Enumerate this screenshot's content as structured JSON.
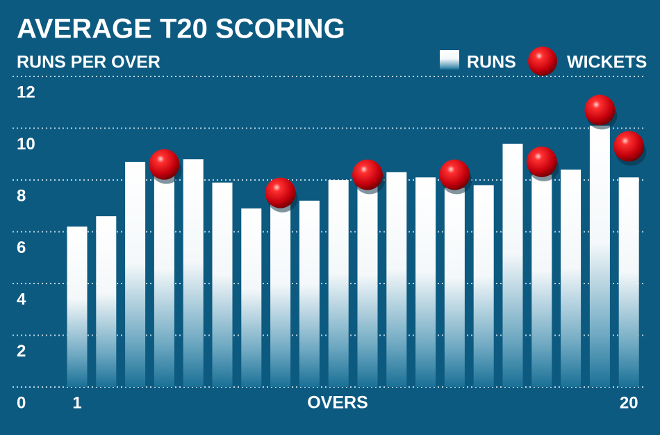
{
  "chart_data": {
    "type": "bar",
    "title": "AVERAGE T20 SCORING",
    "ylabel": "RUNS PER OVER",
    "xlabel": "OVERS",
    "categories": [
      1,
      null,
      null,
      null,
      null,
      null,
      null,
      null,
      null,
      null,
      null,
      null,
      null,
      null,
      null,
      null,
      null,
      null,
      null,
      20
    ],
    "series": [
      {
        "name": "RUNS",
        "color": "#ffffff",
        "values": [
          6.2,
          6.6,
          8.7,
          8.3,
          8.8,
          7.9,
          6.9,
          7.2,
          7.2,
          8.0,
          7.9,
          8.3,
          8.1,
          7.7,
          7.8,
          9.4,
          8.2,
          8.4,
          10.1,
          8.1
        ]
      },
      {
        "name": "WICKETS",
        "color": "#e0101a",
        "values": [
          null,
          null,
          null,
          8.6,
          null,
          null,
          null,
          7.5,
          null,
          null,
          8.2,
          null,
          null,
          8.2,
          null,
          null,
          8.7,
          null,
          10.7,
          9.3
        ]
      }
    ],
    "ylim": [
      0,
      12
    ],
    "yticks": [
      0,
      2,
      4,
      6,
      8,
      10,
      12
    ],
    "grid": true,
    "legend": "top-right"
  }
}
